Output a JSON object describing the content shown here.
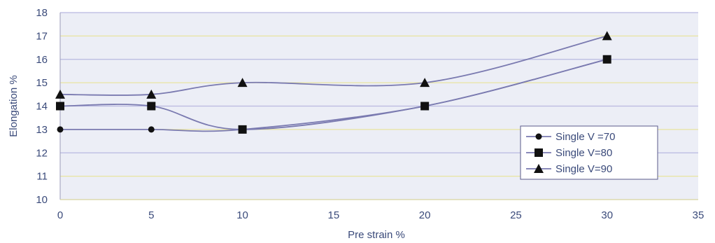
{
  "chart_data": {
    "type": "line",
    "xlabel": "Pre strain %",
    "ylabel": "Elongation %",
    "xlim": [
      0,
      35
    ],
    "ylim": [
      10,
      18
    ],
    "xticks": [
      0,
      5,
      10,
      15,
      20,
      25,
      30,
      35
    ],
    "yticks": [
      10,
      11,
      12,
      13,
      14,
      15,
      16,
      17,
      18
    ],
    "grid": true,
    "smooth": true,
    "legend_position": "bottom-right",
    "colors": {
      "plot_background": "#eceef6",
      "gridline_blue": "#b8b8e0",
      "gridline_yellow": "#e8e4a0",
      "line": "#7a7ab0",
      "marker": "#111111",
      "axis_text": "#3a4a7a"
    },
    "series": [
      {
        "name": "Single V =70",
        "marker": "circle",
        "x": [
          0,
          5,
          10,
          20,
          30
        ],
        "y": [
          13,
          13,
          13,
          14,
          16
        ]
      },
      {
        "name": "Single V=80",
        "marker": "square",
        "x": [
          0,
          5,
          10,
          20,
          30
        ],
        "y": [
          14,
          14,
          13,
          14,
          16
        ]
      },
      {
        "name": "Single V=90",
        "marker": "triangle",
        "x": [
          0,
          5,
          10,
          20,
          30
        ],
        "y": [
          14.5,
          14.5,
          15,
          15,
          17
        ]
      }
    ]
  }
}
